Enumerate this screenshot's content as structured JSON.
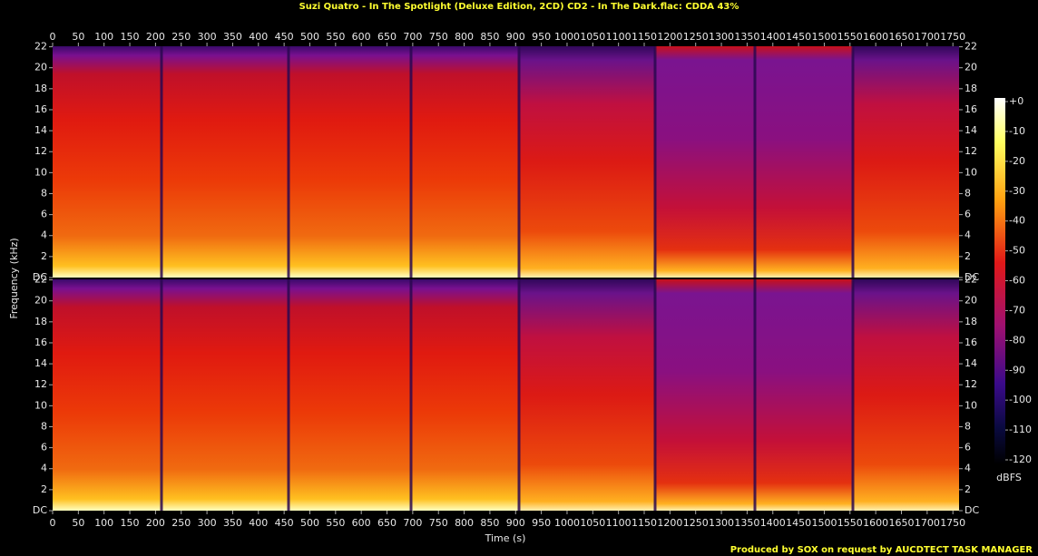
{
  "chart_data": {
    "type": "spectrogram",
    "title": "Suzi Quatro - In The Spotlight (Deluxe Edition, 2CD) CD2 - In The Dark.flac: CDDA 43%",
    "x_label": "Time (s)",
    "y_label": "Frequency (kHz)",
    "xlim": [
      0,
      1762
    ],
    "xticks": [
      0,
      50,
      100,
      150,
      200,
      250,
      300,
      350,
      400,
      450,
      500,
      550,
      600,
      650,
      700,
      750,
      800,
      850,
      900,
      950,
      1000,
      1050,
      1100,
      1150,
      1200,
      1250,
      1300,
      1350,
      1400,
      1450,
      1500,
      1550,
      1600,
      1650,
      1700,
      1750
    ],
    "ylim": [
      0,
      22.05
    ],
    "yticks": [
      {
        "value": 0,
        "label": "DC"
      },
      2,
      4,
      6,
      8,
      10,
      12,
      14,
      16,
      18,
      20,
      22
    ],
    "colorbar_label": "dBFS",
    "zlim": [
      -120,
      0
    ],
    "zticks": [
      {
        "value": 0,
        "label": "+0"
      },
      -10,
      -20,
      -30,
      -40,
      -50,
      -60,
      -70,
      -80,
      -90,
      -100,
      -110,
      -120
    ],
    "footer": "Produced by SOX on request by AUCDTECT TASK MANAGER"
  }
}
